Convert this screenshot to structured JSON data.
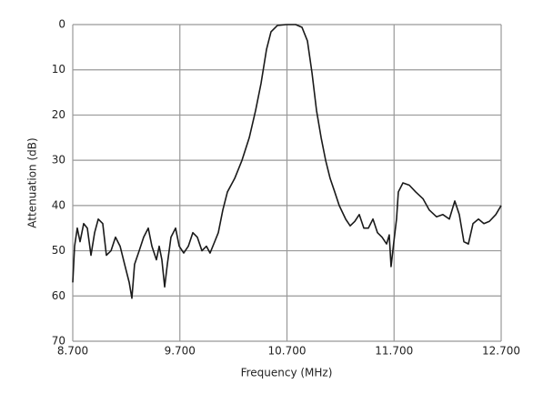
{
  "chart_data": {
    "type": "line",
    "x_label": "Frequency (MHz)",
    "y_label": "Attenuation (dB)",
    "xlim": [
      8.7,
      12.7
    ],
    "xticks": [
      {
        "value": 8.7,
        "label": "8.700"
      },
      {
        "value": 9.7,
        "label": "9.700"
      },
      {
        "value": 10.7,
        "label": "10.700"
      },
      {
        "value": 11.7,
        "label": "11.700"
      },
      {
        "value": 12.7,
        "label": "12.700"
      }
    ],
    "ylim": [
      0,
      70
    ],
    "yticks": [
      0,
      10,
      20,
      30,
      40,
      50,
      60,
      70
    ],
    "y_inverted": true,
    "grid": true,
    "series": [
      {
        "color": "#1a1a1a",
        "x": [
          8.7,
          8.717,
          8.742,
          8.768,
          8.802,
          8.836,
          8.87,
          8.904,
          8.938,
          8.98,
          9.014,
          9.057,
          9.099,
          9.142,
          9.184,
          9.227,
          9.252,
          9.277,
          9.32,
          9.362,
          9.405,
          9.439,
          9.481,
          9.507,
          9.532,
          9.558,
          9.583,
          9.617,
          9.66,
          9.694,
          9.736,
          9.779,
          9.821,
          9.863,
          9.906,
          9.948,
          9.982,
          10.025,
          10.059,
          10.101,
          10.144,
          10.212,
          10.28,
          10.348,
          10.407,
          10.458,
          10.509,
          10.551,
          10.611,
          10.696,
          10.781,
          10.84,
          10.891,
          10.934,
          10.976,
          11.019,
          11.061,
          11.103,
          11.146,
          11.188,
          11.248,
          11.29,
          11.333,
          11.375,
          11.418,
          11.46,
          11.503,
          11.545,
          11.588,
          11.63,
          11.655,
          11.672,
          11.698,
          11.723,
          11.74,
          11.783,
          11.842,
          11.902,
          11.97,
          12.029,
          12.097,
          12.156,
          12.216,
          12.267,
          12.309,
          12.352,
          12.394,
          12.437,
          12.488,
          12.539,
          12.59,
          12.65,
          12.7
        ],
        "values": [
          57,
          49,
          45,
          48,
          44,
          45,
          51,
          46,
          43,
          44,
          51,
          50,
          47,
          49,
          53,
          57,
          60.5,
          53,
          50,
          47,
          45,
          49,
          52,
          49,
          52,
          58,
          53,
          47,
          45,
          49,
          50.5,
          49,
          46,
          47,
          50,
          49,
          50.5,
          48,
          46,
          41,
          37,
          34,
          30,
          25,
          19,
          13,
          5.5,
          1.6,
          0.2,
          0,
          0,
          0.6,
          3.6,
          10.7,
          19,
          25,
          30,
          34,
          37,
          40,
          43,
          44.5,
          43.5,
          42,
          45,
          45,
          43,
          46,
          47,
          48.5,
          46.5,
          53.5,
          48,
          43,
          37,
          35,
          35.5,
          37,
          38.5,
          41,
          42.5,
          42,
          43,
          39,
          42,
          48,
          48.5,
          44,
          43,
          44,
          43.5,
          42,
          40
        ]
      }
    ]
  }
}
